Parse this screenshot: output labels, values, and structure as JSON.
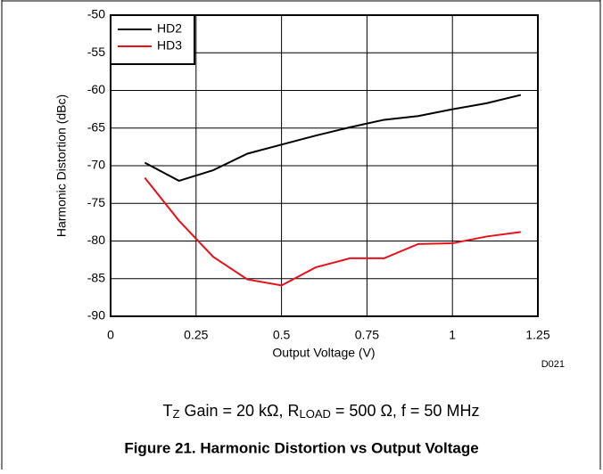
{
  "chart_data": {
    "type": "line",
    "figure_title": "Figure 21. Harmonic Distortion vs Output Voltage",
    "caption": [
      "T",
      "Z",
      " Gain = 20 kΩ, R",
      "LOAD",
      " = 500 Ω, f = 50 MHz"
    ],
    "note": "D021",
    "xlabel": "Output Voltage (V)",
    "ylabel": "Harmonic Distortion (dBc)",
    "x": [
      0.1,
      0.2,
      0.3,
      0.4,
      0.5,
      0.6,
      0.7,
      0.8,
      0.9,
      1.0,
      1.1,
      1.2
    ],
    "series": [
      {
        "name": "HD2",
        "color": "#000000",
        "values": [
          -69.6,
          -72,
          -70.6,
          -68.4,
          -67.2,
          -66,
          -64.9,
          -63.9,
          -63.4,
          -62.5,
          -61.7,
          -60.6
        ]
      },
      {
        "name": "HD3",
        "color": "#e8101a",
        "values": [
          -71.6,
          -77.3,
          -82.1,
          -85.1,
          -85.9,
          -83.5,
          -82.3,
          -82.3,
          -80.4,
          -80.3,
          -79.4,
          -78.8
        ]
      }
    ],
    "xlim": [
      0,
      1.25
    ],
    "xticks": [
      0,
      0.25,
      0.5,
      0.75,
      1,
      1.25
    ],
    "ylim": [
      -90,
      -50
    ],
    "yticks": [
      -90,
      -85,
      -80,
      -75,
      -70,
      -65,
      -60,
      -55,
      -50
    ],
    "grid": true,
    "legend": "upper left"
  }
}
